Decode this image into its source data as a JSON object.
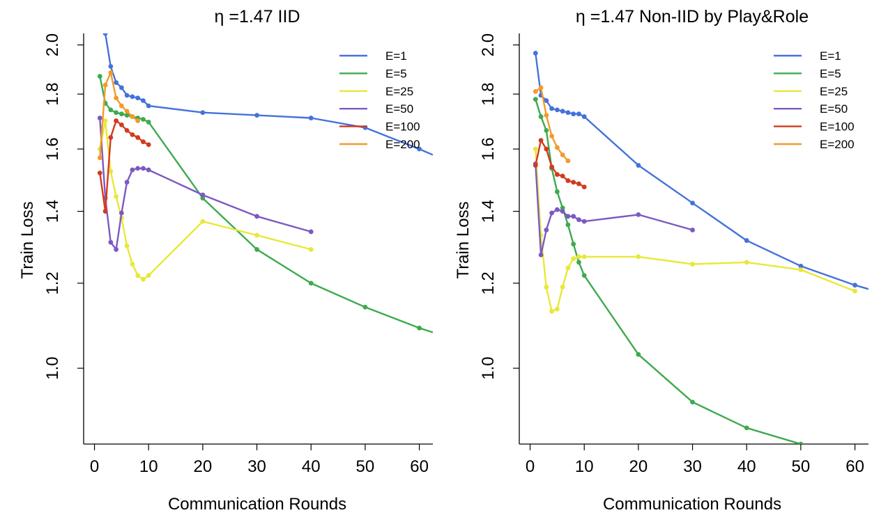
{
  "chart_data": [
    {
      "type": "line",
      "title": "η =1.47 IID",
      "xlabel": "Communication Rounds",
      "ylabel": "Train Loss",
      "xlim": [
        -2,
        62.5
      ],
      "ylim": [
        0.85,
        2.05
      ],
      "y_scale": "log",
      "xticks": [
        0,
        10,
        20,
        30,
        40,
        50,
        60
      ],
      "yticks": [
        1.0,
        1.2,
        1.4,
        1.6,
        1.8,
        2.0
      ],
      "ytick_labels": [
        "1.0",
        "1.2",
        "1.4",
        "1.6",
        "1.8",
        "2.0"
      ],
      "grid": false,
      "legend_position": "top-right",
      "series": [
        {
          "name": "E=1",
          "color": "#4472DB",
          "x": [
            1,
            2,
            3,
            4,
            5,
            6,
            7,
            8,
            9,
            10,
            20,
            30,
            40,
            50,
            60,
            62.5
          ],
          "y": [
            2.3,
            2.05,
            1.91,
            1.845,
            1.825,
            1.795,
            1.79,
            1.785,
            1.775,
            1.755,
            1.73,
            1.72,
            1.71,
            1.675,
            1.6,
            1.58
          ],
          "marker_count": 15
        },
        {
          "name": "E=5",
          "color": "#3DAA4E",
          "x": [
            1,
            2,
            3,
            4,
            5,
            6,
            7,
            8,
            9,
            10,
            20,
            30,
            40,
            50,
            60,
            62.5
          ],
          "y": [
            1.87,
            1.765,
            1.74,
            1.73,
            1.725,
            1.72,
            1.715,
            1.71,
            1.705,
            1.695,
            1.44,
            1.29,
            1.2,
            1.14,
            1.09,
            1.08
          ],
          "marker_count": 15
        },
        {
          "name": "E=25",
          "color": "#E8E838",
          "x": [
            1,
            2,
            3,
            4,
            5,
            6,
            7,
            8,
            9,
            10,
            20,
            30,
            40
          ],
          "y": [
            1.6,
            1.7,
            1.525,
            1.445,
            1.38,
            1.3,
            1.25,
            1.22,
            1.21,
            1.22,
            1.37,
            1.33,
            1.29
          ]
        },
        {
          "name": "E=50",
          "color": "#7C59C2",
          "x": [
            1,
            2,
            3,
            4,
            5,
            6,
            7,
            8,
            9,
            10,
            20,
            30,
            40
          ],
          "y": [
            1.71,
            1.44,
            1.31,
            1.29,
            1.395,
            1.49,
            1.53,
            1.535,
            1.535,
            1.53,
            1.45,
            1.385,
            1.34
          ]
        },
        {
          "name": "E=100",
          "color": "#D23B1E",
          "x": [
            1,
            2,
            3,
            4,
            5,
            6,
            7,
            8,
            9,
            10
          ],
          "y": [
            1.52,
            1.4,
            1.64,
            1.7,
            1.685,
            1.665,
            1.65,
            1.64,
            1.625,
            1.615
          ]
        },
        {
          "name": "E=200",
          "color": "#F39A2B",
          "x": [
            1,
            2,
            3,
            4,
            5,
            6,
            7,
            8
          ],
          "y": [
            1.57,
            1.835,
            1.885,
            1.785,
            1.755,
            1.735,
            1.715,
            1.7
          ]
        }
      ]
    },
    {
      "type": "line",
      "title": "η =1.47 Non-IID by Play&Role",
      "xlabel": "Communication Rounds",
      "ylabel": "Train Loss",
      "xlim": [
        -2,
        62.5
      ],
      "ylim": [
        0.85,
        2.05
      ],
      "y_scale": "log",
      "xticks": [
        0,
        10,
        20,
        30,
        40,
        50,
        60
      ],
      "yticks": [
        1.0,
        1.2,
        1.4,
        1.6,
        1.8,
        2.0
      ],
      "ytick_labels": [
        "1.0",
        "1.2",
        "1.4",
        "1.6",
        "1.8",
        "2.0"
      ],
      "grid": false,
      "legend_position": "top-right",
      "series": [
        {
          "name": "E=1",
          "color": "#4472DB",
          "x": [
            1,
            2,
            3,
            4,
            5,
            6,
            7,
            8,
            9,
            10,
            20,
            30,
            40,
            50,
            60,
            62.5
          ],
          "y": [
            1.965,
            1.795,
            1.775,
            1.745,
            1.74,
            1.735,
            1.73,
            1.725,
            1.725,
            1.715,
            1.545,
            1.425,
            1.315,
            1.245,
            1.195,
            1.185
          ],
          "marker_count": 15
        },
        {
          "name": "E=5",
          "color": "#3DAA4E",
          "x": [
            1,
            2,
            3,
            4,
            5,
            6,
            7,
            8,
            9,
            10,
            20,
            30,
            40,
            50
          ],
          "y": [
            1.78,
            1.715,
            1.665,
            1.535,
            1.46,
            1.41,
            1.36,
            1.305,
            1.255,
            1.22,
            1.03,
            0.93,
            0.88,
            0.85
          ]
        },
        {
          "name": "E=25",
          "color": "#E8E838",
          "x": [
            1,
            2,
            3,
            4,
            5,
            6,
            7,
            8,
            9,
            10,
            20,
            30,
            40,
            50,
            60
          ],
          "y": [
            1.6,
            1.33,
            1.19,
            1.13,
            1.135,
            1.19,
            1.24,
            1.265,
            1.27,
            1.27,
            1.27,
            1.25,
            1.255,
            1.235,
            1.18
          ]
        },
        {
          "name": "E=50",
          "color": "#7C59C2",
          "x": [
            1,
            2,
            3,
            4,
            5,
            6,
            7,
            8,
            9,
            10,
            20,
            30
          ],
          "y": [
            1.55,
            1.275,
            1.345,
            1.395,
            1.405,
            1.4,
            1.385,
            1.385,
            1.375,
            1.37,
            1.39,
            1.345
          ]
        },
        {
          "name": "E=100",
          "color": "#D23B1E",
          "x": [
            1,
            2,
            3,
            4,
            5,
            6,
            7,
            8,
            9,
            10
          ],
          "y": [
            1.545,
            1.63,
            1.6,
            1.54,
            1.515,
            1.51,
            1.495,
            1.49,
            1.485,
            1.475
          ]
        },
        {
          "name": "E=200",
          "color": "#F39A2B",
          "x": [
            1,
            2,
            3,
            4,
            5,
            6,
            7
          ],
          "y": [
            1.81,
            1.825,
            1.72,
            1.645,
            1.605,
            1.58,
            1.56
          ]
        }
      ]
    }
  ]
}
